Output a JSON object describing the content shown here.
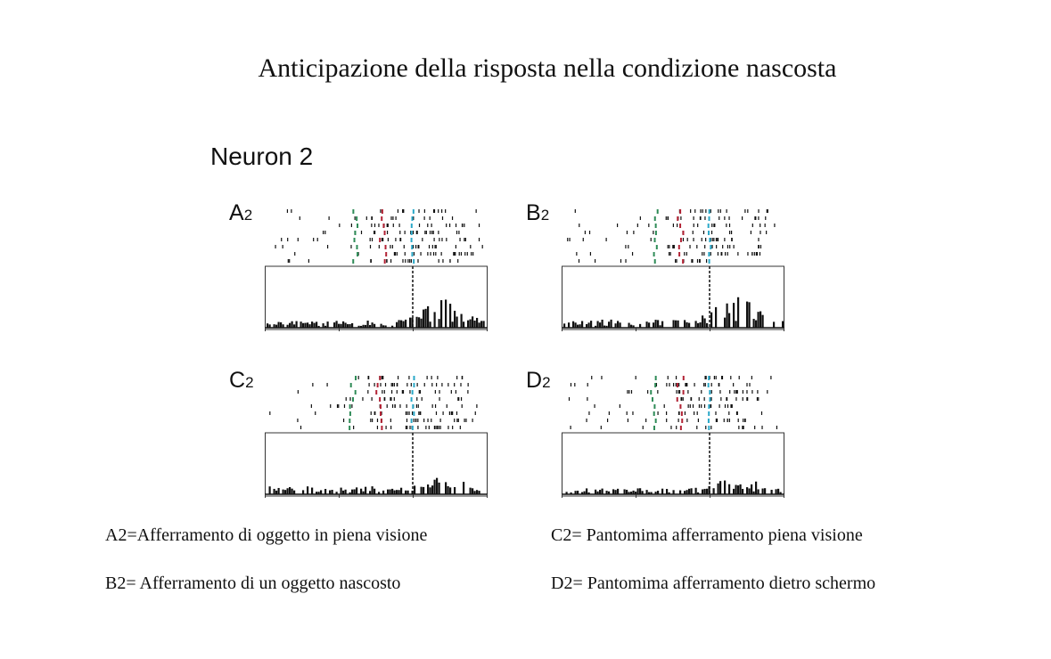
{
  "title": "Anticipazione della risposta nella condizione nascosta",
  "figure": {
    "neuron_label": "Neuron 2",
    "panels": [
      {
        "id": "A",
        "letter": "A",
        "subscript": "2"
      },
      {
        "id": "B",
        "letter": "B",
        "subscript": "2"
      },
      {
        "id": "C",
        "letter": "C",
        "subscript": "2"
      },
      {
        "id": "D",
        "letter": "D",
        "subscript": "2"
      }
    ]
  },
  "captions": [
    "A2=Afferramento di oggetto in piena visione",
    "C2= Pantomima afferramento piena visione",
    "B2= Afferramento di un oggetto nascosto",
    "D2= Pantomima afferramento dietro schermo"
  ],
  "colors": {
    "raster": "#111111",
    "marker_green": "#2e8b57",
    "marker_red": "#b22234",
    "marker_cyan": "#2aa8c8"
  }
}
